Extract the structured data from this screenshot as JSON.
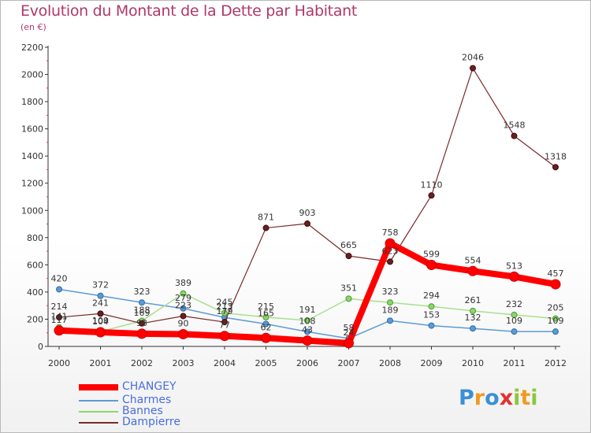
{
  "header": {
    "title": "Evolution du Montant de la Dette par Habitant",
    "subtitle": "(en €)"
  },
  "logo": {
    "text": "Proxiti"
  },
  "chart_data": {
    "type": "line",
    "title": "Evolution du Montant de la Dette par Habitant",
    "subtitle": "(en €)",
    "xlabel": "",
    "ylabel": "",
    "x": [
      "2000",
      "2001",
      "2002",
      "2003",
      "2004",
      "2005",
      "2006",
      "2007",
      "2008",
      "2009",
      "2010",
      "2011",
      "2012"
    ],
    "ylim": [
      0,
      2200
    ],
    "yticks": [
      0,
      200,
      400,
      600,
      800,
      1000,
      1200,
      1400,
      1600,
      1800,
      2000,
      2200
    ],
    "grid": false,
    "legend_placement": "bottom-left",
    "series": [
      {
        "name": "CHANGEY",
        "color": "#ff0000",
        "values": [
          117,
          104,
          93,
          90,
          77,
          62,
          43,
          24,
          758,
          599,
          554,
          513,
          457
        ]
      },
      {
        "name": "Charmes",
        "color": "#5b9bd5",
        "values": [
          420,
          372,
          323,
          279,
          213,
          165,
          108,
          58,
          189,
          153,
          132,
          109,
          109
        ]
      },
      {
        "name": "Bannes",
        "color": "#8bd66b",
        "values": [
          141,
          109,
          188,
          389,
          245,
          215,
          191,
          351,
          323,
          294,
          261,
          232,
          205
        ]
      },
      {
        "name": "Dampierre",
        "color": "#7a2b2b",
        "values": [
          214,
          241,
          169,
          223,
          179,
          871,
          903,
          665,
          623,
          1110,
          2046,
          1548,
          1318
        ]
      }
    ]
  }
}
